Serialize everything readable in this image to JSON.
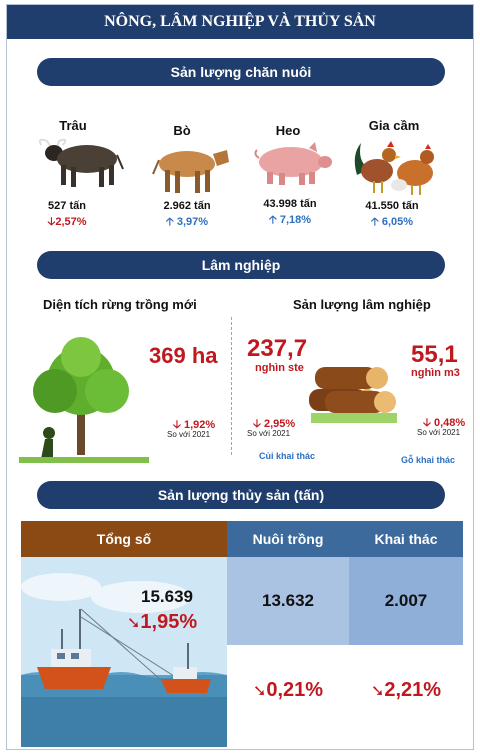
{
  "header": {
    "title": "NÔNG, LÂM NGHIỆP VÀ THỦY SẢN"
  },
  "livestock": {
    "title": "Sản lượng chăn nuôi",
    "items": [
      {
        "name": "Trâu",
        "value": "527 tấn",
        "change": "2,57%",
        "direction": "down",
        "icon": "buffalo-icon"
      },
      {
        "name": "Bò",
        "value": "2.962 tấn",
        "change": "3,97%",
        "direction": "up",
        "icon": "cow-icon"
      },
      {
        "name": "Heo",
        "value": "43.998 tấn",
        "change": "7,18%",
        "direction": "up",
        "icon": "pig-icon"
      },
      {
        "name": "Gia cầm",
        "value": "41.550 tấn",
        "change": "6,05%",
        "direction": "up",
        "icon": "poultry-icon"
      }
    ]
  },
  "forestry": {
    "title": "Lâm nghiệp",
    "area": {
      "label": "Diện tích rừng trồng mới",
      "value": "369 ha",
      "change": "1,92%",
      "compare": "So với 2021"
    },
    "output_label": "Sản lượng lâm nghiệp",
    "firewood": {
      "value": "237,7",
      "unit": "nghìn ste",
      "change": "2,95%",
      "compare": "So với 2021",
      "note": "Củi khai thác"
    },
    "timber": {
      "value": "55,1",
      "unit": "nghìn m3",
      "change": "0,48%",
      "compare": "So với 2021",
      "note": "Gỗ khai thác"
    }
  },
  "fishery": {
    "title": "Sản lượng thủy sản (tấn)",
    "headers": {
      "total": "Tổng số",
      "farming": "Nuôi trồng",
      "catch": "Khai thác"
    },
    "total": {
      "value": "15.639",
      "change": "1,95%"
    },
    "farming": {
      "value": "13.632",
      "change": "0,21%"
    },
    "catch": {
      "value": "2.007",
      "change": "2,21%"
    }
  },
  "colors": {
    "navy": "#1f3d6d",
    "brown": "#8b4a14",
    "steel": "#3d6a9c",
    "light_blue": "#aac3e2",
    "red": "#c0181e",
    "blue": "#2e6fbf"
  }
}
